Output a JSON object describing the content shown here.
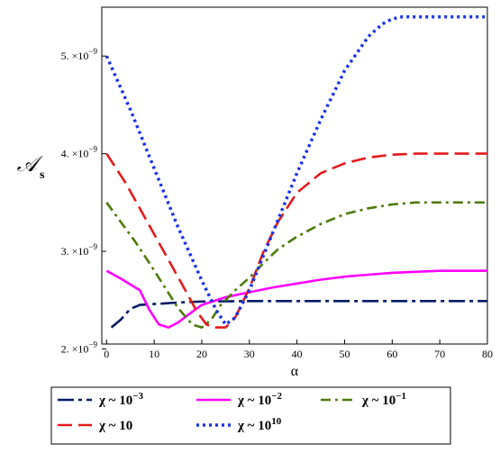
{
  "chart_data": {
    "type": "line",
    "title": "",
    "xlabel": "α",
    "ylabel": "𝒜",
    "ylabel_sub": "s",
    "xlim": [
      -1,
      80
    ],
    "ylim": [
      2.05e-09,
      5.5e-09
    ],
    "x_ticks": [
      0,
      10,
      20,
      30,
      40,
      50,
      60,
      70,
      80
    ],
    "y_ticks": [
      {
        "value": 2e-09,
        "mant": "2.",
        "base": "×10",
        "exp": "−9"
      },
      {
        "value": 3e-09,
        "mant": "3.",
        "base": "×10",
        "exp": "−9"
      },
      {
        "value": 4e-09,
        "mant": "4.",
        "base": "×10",
        "exp": "−9"
      },
      {
        "value": 5e-09,
        "mant": "5.",
        "base": "×10",
        "exp": "−9"
      }
    ],
    "grid": false,
    "legend_position": "bottom",
    "series": [
      {
        "name": "χ ~ 10⁻³",
        "name_base": "χ ~ 10",
        "name_exp": "−3",
        "color": "#001a66",
        "dash": "longdashdot",
        "x": [
          1,
          3,
          5,
          7,
          10,
          15,
          20,
          30,
          40,
          50,
          60,
          70,
          80
        ],
        "y": [
          2.22e-09,
          2.3e-09,
          2.41e-09,
          2.45e-09,
          2.46e-09,
          2.475e-09,
          2.485e-09,
          2.49e-09,
          2.49e-09,
          2.49e-09,
          2.49e-09,
          2.49e-09,
          2.49e-09
        ]
      },
      {
        "name": "χ ~ 10⁻²",
        "name_base": "χ ~ 10",
        "name_exp": "−2",
        "color": "#ff00ff",
        "dash": "solid",
        "x": [
          0,
          3,
          5,
          7,
          9,
          11,
          13,
          15,
          18,
          20,
          25,
          30,
          35,
          40,
          45,
          50,
          55,
          60,
          65,
          70,
          80
        ],
        "y": [
          2.8e-09,
          2.72e-09,
          2.66e-09,
          2.6e-09,
          2.4e-09,
          2.25e-09,
          2.22e-09,
          2.27e-09,
          2.38e-09,
          2.45e-09,
          2.53e-09,
          2.58e-09,
          2.63e-09,
          2.67e-09,
          2.71e-09,
          2.74e-09,
          2.76e-09,
          2.78e-09,
          2.79e-09,
          2.8e-09,
          2.8e-09
        ]
      },
      {
        "name": "χ ~ 10⁻¹",
        "name_base": "χ ~ 10",
        "name_exp": "−1",
        "color": "#4d7a0a",
        "dash": "dashdot",
        "x": [
          0,
          3,
          6,
          9,
          12,
          15,
          18,
          20,
          22,
          24,
          27,
          30,
          33,
          36,
          40,
          45,
          50,
          55,
          60,
          65,
          70,
          80
        ],
        "y": [
          3.5e-09,
          3.3e-09,
          3.1e-09,
          2.88e-09,
          2.65e-09,
          2.42e-09,
          2.25e-09,
          2.22e-09,
          2.3e-09,
          2.45e-09,
          2.6e-09,
          2.73e-09,
          2.88e-09,
          3.02e-09,
          3.15e-09,
          3.28e-09,
          3.38e-09,
          3.44e-09,
          3.48e-09,
          3.5e-09,
          3.5e-09,
          3.5e-09
        ]
      },
      {
        "name": "χ ~ 10",
        "color": "#e31a1c",
        "dash": "longdash",
        "x": [
          0,
          4,
          8,
          12,
          16,
          19,
          21,
          23,
          25,
          27,
          30,
          33,
          36,
          40,
          45,
          50,
          55,
          60,
          65,
          70,
          80
        ],
        "y": [
          4e-09,
          3.7e-09,
          3.35e-09,
          3e-09,
          2.65e-09,
          2.38e-09,
          2.25e-09,
          2.22e-09,
          2.22e-09,
          2.32e-09,
          2.62e-09,
          3e-09,
          3.3e-09,
          3.6e-09,
          3.8e-09,
          3.9e-09,
          3.96e-09,
          3.99e-09,
          4e-09,
          4e-09,
          4e-09
        ]
      },
      {
        "name": "χ ~ 10¹⁰",
        "name_base": "χ ~ 10",
        "name_exp": "10",
        "color": "#1a33e6",
        "dash": "dotted",
        "x": [
          0,
          5,
          10,
          15,
          20,
          23,
          25,
          27,
          30,
          35,
          40,
          45,
          50,
          55,
          58,
          60,
          62,
          65,
          70,
          80
        ],
        "y": [
          5e-09,
          4.45e-09,
          3.85e-09,
          3.25e-09,
          2.7e-09,
          2.4e-09,
          2.25e-09,
          2.32e-09,
          2.6e-09,
          3.2e-09,
          3.8e-09,
          4.35e-09,
          4.85e-09,
          5.2e-09,
          5.33e-09,
          5.38e-09,
          5.4e-09,
          5.4e-09,
          5.4e-09,
          5.4e-09
        ]
      }
    ]
  }
}
